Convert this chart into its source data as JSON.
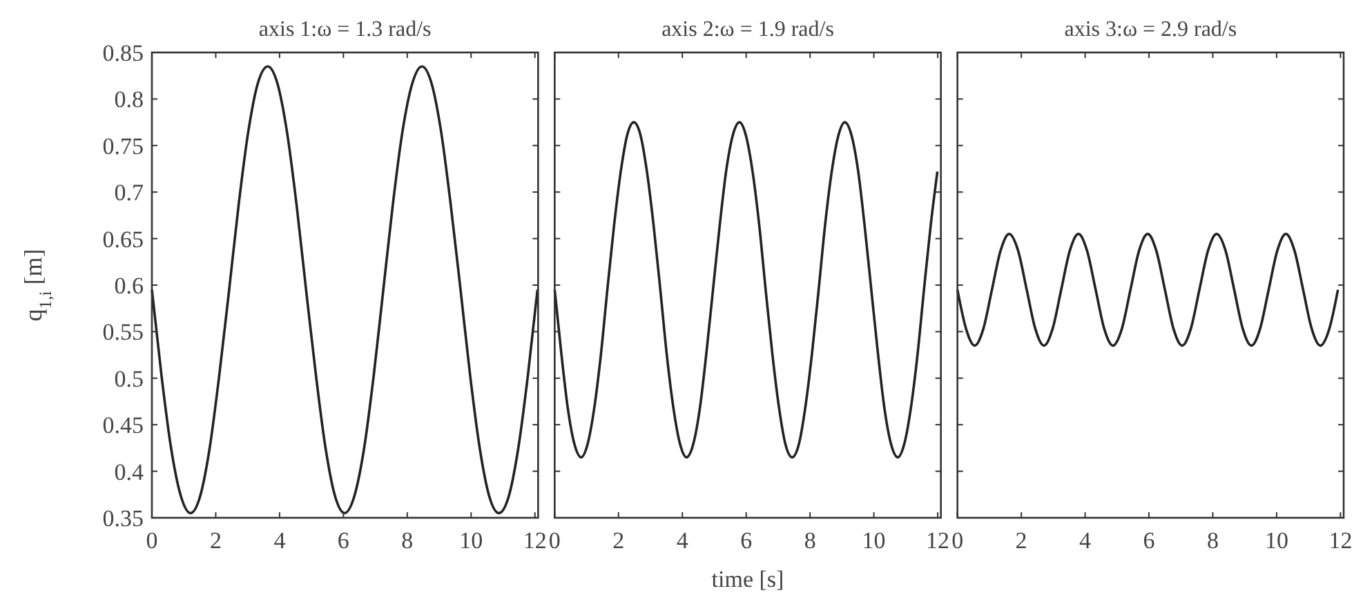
{
  "chart_data": [
    {
      "type": "line",
      "title": "axis 1:ω = 1.3 rad/s",
      "ylabel": "q$_{1,i}$ [m]",
      "xlim": [
        0,
        12.1
      ],
      "xticks": [
        0,
        2,
        4,
        6,
        8,
        10,
        12
      ],
      "ylim": [
        0.35,
        0.85
      ],
      "yticks": [
        0.35,
        0.4,
        0.45,
        0.5,
        0.55,
        0.6,
        0.65,
        0.7,
        0.75,
        0.8,
        0.85
      ],
      "grid": false,
      "marker": "none",
      "line_style": "solid",
      "x": [
        0,
        0.3,
        0.6,
        0.91,
        1.21,
        1.51,
        1.81,
        2.11,
        2.42,
        2.72,
        3.02,
        3.32,
        3.63,
        3.93,
        4.23,
        4.53,
        4.83,
        5.14,
        5.44,
        5.74,
        6.04,
        6.34,
        6.65,
        6.95,
        7.25,
        7.55,
        7.85,
        8.16,
        8.46,
        8.76,
        9.06,
        9.36,
        9.67,
        9.97,
        10.27,
        10.57,
        10.87,
        11.18,
        11.48,
        11.78,
        12.08
      ],
      "series": [
        {
          "color": "#222222",
          "values": [
            0.595,
            0.503,
            0.425,
            0.373,
            0.355,
            0.373,
            0.425,
            0.503,
            0.595,
            0.687,
            0.765,
            0.817,
            0.835,
            0.817,
            0.765,
            0.687,
            0.595,
            0.503,
            0.425,
            0.373,
            0.355,
            0.373,
            0.425,
            0.503,
            0.595,
            0.687,
            0.765,
            0.817,
            0.835,
            0.817,
            0.765,
            0.687,
            0.595,
            0.503,
            0.425,
            0.373,
            0.355,
            0.373,
            0.425,
            0.503,
            0.595
          ]
        }
      ]
    },
    {
      "type": "line",
      "title": "axis 2:ω = 1.9 rad/s",
      "xlabel": "time [s]",
      "xlim": [
        0,
        12.1
      ],
      "xticks": [
        0,
        2,
        4,
        6,
        8,
        10,
        12
      ],
      "ylim": [
        0.35,
        0.85
      ],
      "yticks": [
        0.35,
        0.4,
        0.45,
        0.5,
        0.55,
        0.6,
        0.65,
        0.7,
        0.75,
        0.8,
        0.85
      ],
      "tick_labels": "x",
      "grid": false,
      "marker": "none",
      "line_style": "solid",
      "x": [
        0,
        0.21,
        0.41,
        0.62,
        0.83,
        1.03,
        1.24,
        1.45,
        1.65,
        1.86,
        2.07,
        2.27,
        2.48,
        2.69,
        2.89,
        3.1,
        3.31,
        3.51,
        3.72,
        3.93,
        4.13,
        4.34,
        4.55,
        4.75,
        4.96,
        5.17,
        5.37,
        5.58,
        5.79,
        5.99,
        6.2,
        6.41,
        6.61,
        6.82,
        7.03,
        7.23,
        7.44,
        7.65,
        7.85,
        8.06,
        8.27,
        8.47,
        8.68,
        8.89,
        9.09,
        9.3,
        9.51,
        9.71,
        9.92,
        10.13,
        10.33,
        10.54,
        10.75,
        10.95,
        11.16,
        11.37,
        11.57,
        11.78,
        11.99
      ],
      "series": [
        {
          "color": "#222222",
          "values": [
            0.595,
            0.526,
            0.468,
            0.429,
            0.415,
            0.429,
            0.468,
            0.526,
            0.595,
            0.664,
            0.722,
            0.761,
            0.775,
            0.761,
            0.722,
            0.664,
            0.595,
            0.526,
            0.468,
            0.429,
            0.415,
            0.429,
            0.468,
            0.526,
            0.595,
            0.664,
            0.722,
            0.761,
            0.775,
            0.761,
            0.722,
            0.664,
            0.595,
            0.526,
            0.468,
            0.429,
            0.415,
            0.429,
            0.468,
            0.526,
            0.595,
            0.664,
            0.722,
            0.761,
            0.775,
            0.761,
            0.722,
            0.664,
            0.595,
            0.526,
            0.468,
            0.429,
            0.415,
            0.429,
            0.468,
            0.526,
            0.595,
            0.664,
            0.722
          ]
        }
      ]
    },
    {
      "type": "line",
      "title": "axis 3:ω = 2.9 rad/s",
      "xlim": [
        0,
        12.1
      ],
      "xticks": [
        0,
        2,
        4,
        6,
        8,
        10,
        12
      ],
      "ylim": [
        0.35,
        0.85
      ],
      "yticks": [
        0.35,
        0.4,
        0.45,
        0.5,
        0.55,
        0.6,
        0.65,
        0.7,
        0.75,
        0.8,
        0.85
      ],
      "tick_labels": "x",
      "grid": false,
      "marker": "none",
      "line_style": "solid",
      "x": [
        0,
        0.27,
        0.54,
        0.81,
        1.08,
        1.35,
        1.62,
        1.9,
        2.17,
        2.44,
        2.71,
        2.98,
        3.25,
        3.52,
        3.79,
        4.06,
        4.33,
        4.6,
        4.87,
        5.15,
        5.42,
        5.69,
        5.96,
        6.23,
        6.5,
        6.77,
        7.04,
        7.31,
        7.58,
        7.85,
        8.12,
        8.4,
        8.67,
        8.94,
        9.21,
        9.48,
        9.75,
        10.02,
        10.29,
        10.56,
        10.83,
        11.1,
        11.37,
        11.65,
        11.92
      ],
      "series": [
        {
          "color": "#222222",
          "values": [
            0.595,
            0.553,
            0.535,
            0.553,
            0.595,
            0.637,
            0.655,
            0.637,
            0.595,
            0.553,
            0.535,
            0.553,
            0.595,
            0.637,
            0.655,
            0.637,
            0.595,
            0.553,
            0.535,
            0.553,
            0.595,
            0.637,
            0.655,
            0.637,
            0.595,
            0.553,
            0.535,
            0.553,
            0.595,
            0.637,
            0.655,
            0.637,
            0.595,
            0.553,
            0.535,
            0.553,
            0.595,
            0.637,
            0.655,
            0.637,
            0.595,
            0.553,
            0.535,
            0.553,
            0.595
          ]
        }
      ]
    }
  ]
}
